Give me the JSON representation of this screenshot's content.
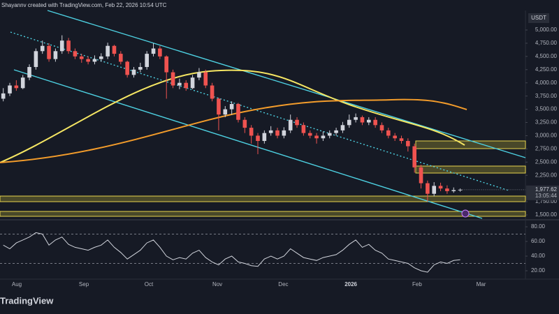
{
  "header": "Shayannv created with TradingView.com, Feb 22, 2026 10:54 UTC",
  "footer": "TradingView",
  "chart_data": [
    {
      "type": "candlestick",
      "currency": "USDT",
      "categories": [
        null,
        null,
        null,
        null,
        null,
        null,
        null,
        null,
        null,
        null,
        null,
        null,
        null,
        null,
        null,
        null,
        null,
        null,
        null,
        null,
        null,
        null,
        null,
        null,
        null,
        null,
        null,
        null,
        null,
        null,
        null,
        null,
        null,
        null,
        null,
        null,
        null,
        null,
        null,
        null,
        null,
        null,
        null,
        null,
        null,
        null,
        null,
        null,
        null,
        null,
        null,
        null,
        null,
        null,
        null,
        null,
        null,
        null,
        null,
        null,
        null,
        null,
        null,
        null,
        null,
        null,
        null,
        null,
        null,
        null,
        null
      ],
      "open": [
        3700,
        3800,
        3950,
        3900,
        4100,
        4300,
        4600,
        4700,
        4450,
        4600,
        4800,
        4600,
        4500,
        4450,
        4400,
        4450,
        4500,
        4700,
        4550,
        4400,
        4150,
        4250,
        4300,
        4550,
        4650,
        4500,
        4200,
        3950,
        4000,
        3900,
        4100,
        4200,
        3950,
        3700,
        3400,
        3500,
        3600,
        3300,
        3150,
        3000,
        2900,
        3050,
        3100,
        3000,
        3100,
        3300,
        3200,
        3050,
        3000,
        2950,
        3000,
        3050,
        3100,
        3200,
        3300,
        3350,
        3250,
        3300,
        3200,
        3100,
        3000,
        2950,
        2900,
        2800,
        2400,
        2100,
        1900,
        2050,
        2000,
        1950,
        1970
      ],
      "high": [
        3900,
        4000,
        4050,
        4150,
        4350,
        4650,
        4800,
        4750,
        4650,
        4900,
        4850,
        4650,
        4550,
        4500,
        4520,
        4560,
        4760,
        4720,
        4600,
        4420,
        4300,
        4380,
        4600,
        4750,
        4700,
        4520,
        4250,
        4080,
        4050,
        4150,
        4280,
        4250,
        4000,
        3720,
        3560,
        3650,
        3620,
        3350,
        3200,
        3050,
        3100,
        3180,
        3150,
        3160,
        3400,
        3350,
        3250,
        3100,
        3050,
        3080,
        3100,
        3150,
        3260,
        3400,
        3420,
        3380,
        3350,
        3350,
        3250,
        3150,
        3050,
        3000,
        2950,
        2850,
        2450,
        2150,
        2120,
        2110,
        2060,
        2020,
        2000
      ],
      "low": [
        3650,
        3750,
        3850,
        3880,
        4050,
        4250,
        4550,
        4400,
        4400,
        4550,
        4550,
        4450,
        4380,
        4350,
        4350,
        4400,
        4450,
        4500,
        4350,
        4100,
        4100,
        4200,
        4250,
        4500,
        4450,
        3700,
        3900,
        3880,
        3850,
        3880,
        4050,
        3900,
        3650,
        3100,
        3350,
        3400,
        3250,
        3050,
        2850,
        2650,
        2850,
        3000,
        2950,
        2950,
        3050,
        3150,
        3000,
        2950,
        2850,
        2900,
        2950,
        3000,
        3050,
        3150,
        3250,
        3200,
        3200,
        3150,
        3050,
        2950,
        2900,
        2850,
        2700,
        2300,
        2000,
        1750,
        1850,
        1950,
        1900,
        1920,
        1940
      ],
      "close": [
        3800,
        3950,
        3900,
        4100,
        4300,
        4600,
        4700,
        4450,
        4600,
        4800,
        4600,
        4500,
        4450,
        4400,
        4450,
        4500,
        4700,
        4550,
        4400,
        4150,
        4250,
        4300,
        4550,
        4650,
        4500,
        4200,
        3950,
        4000,
        3900,
        4100,
        4200,
        3950,
        3700,
        3400,
        3500,
        3600,
        3300,
        3150,
        3000,
        2900,
        3050,
        3100,
        3000,
        3100,
        3300,
        3200,
        3050,
        3000,
        2950,
        3000,
        3050,
        3100,
        3200,
        3300,
        3350,
        3250,
        3300,
        3200,
        3100,
        3000,
        2950,
        2900,
        2800,
        2400,
        2100,
        1900,
        2050,
        2000,
        1950,
        1970,
        1977.62
      ],
      "up_color": "#d1d4dc",
      "down_color": "#ef5350",
      "ylim": [
        1434,
        5370
      ],
      "yticks": [
        {
          "value": 5000,
          "label": "5,000.00"
        },
        {
          "value": 4750,
          "label": "4,750.00"
        },
        {
          "value": 4500,
          "label": "4,500.00"
        },
        {
          "value": 4250,
          "label": "4,250.00"
        },
        {
          "value": 4000,
          "label": "4,000.00"
        },
        {
          "value": 3750,
          "label": "3,750.00"
        },
        {
          "value": 3500,
          "label": "3,500.00"
        },
        {
          "value": 3250,
          "label": "3,250.00"
        },
        {
          "value": 3000,
          "label": "3,000.00"
        },
        {
          "value": 2750,
          "label": "2,750.00"
        },
        {
          "value": 2500,
          "label": "2,500.00"
        },
        {
          "value": 2250,
          "label": "2,250.00"
        },
        {
          "value": 1750,
          "label": "1,750.00"
        },
        {
          "value": 1500,
          "label": "1,500.00"
        }
      ],
      "xlim": [
        -0.5,
        80
      ],
      "xticks": [
        {
          "value": 2.07,
          "label": "Aug"
        },
        {
          "value": 12.35,
          "label": "Sep"
        },
        {
          "value": 22.3,
          "label": "Oct"
        },
        {
          "value": 32.8,
          "label": "Nov"
        },
        {
          "value": 42.9,
          "label": "Dec"
        },
        {
          "value": 53.25,
          "label": "2026"
        },
        {
          "value": 63.4,
          "label": "Feb"
        },
        {
          "value": 73.2,
          "label": "Mar"
        }
      ],
      "last_price": {
        "value": 1977.62,
        "label": "1,977.62"
      },
      "countdown": "13:05:44"
    },
    {
      "type": "line",
      "name": "RSI",
      "color": "#d1d4dc",
      "values": [
        55,
        50,
        58,
        62,
        66,
        72,
        70,
        55,
        62,
        66,
        56,
        52,
        50,
        48,
        52,
        55,
        62,
        52,
        45,
        36,
        42,
        48,
        58,
        62,
        52,
        40,
        35,
        38,
        36,
        44,
        48,
        38,
        32,
        28,
        36,
        40,
        32,
        30,
        27,
        26,
        36,
        40,
        36,
        40,
        50,
        44,
        38,
        36,
        34,
        38,
        40,
        42,
        48,
        56,
        62,
        52,
        56,
        48,
        44,
        36,
        34,
        32,
        30,
        24,
        20,
        18,
        28,
        32,
        30,
        34,
        35
      ],
      "levels": [
        70,
        30
      ],
      "ylim": [
        8.6,
        86.7
      ],
      "yticks": [
        {
          "value": 80,
          "label": "80.00"
        },
        {
          "value": 60,
          "label": "60.00"
        },
        {
          "value": 40,
          "label": "40.00"
        },
        {
          "value": 20,
          "label": "20.00"
        }
      ]
    }
  ]
}
